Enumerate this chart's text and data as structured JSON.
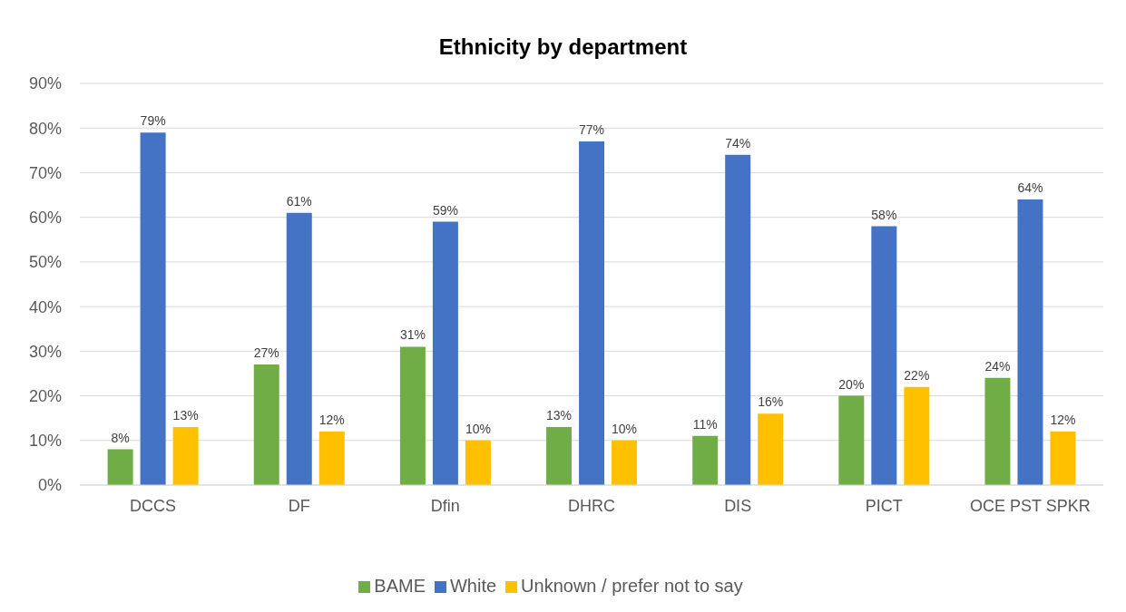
{
  "chart_data": {
    "type": "bar",
    "title": "Ethnicity by department",
    "categories": [
      "DCCS",
      "DF",
      "Dfin",
      "DHRC",
      "DIS",
      "PICT",
      "OCE PST SPKR"
    ],
    "series": [
      {
        "name": "BAME",
        "color": "#70ad47",
        "values": [
          8,
          27,
          31,
          13,
          11,
          20,
          24
        ],
        "value_labels": [
          "8%",
          "27%",
          "31%",
          "13%",
          "11%",
          "20%",
          "24%"
        ]
      },
      {
        "name": "White",
        "color": "#4472c4",
        "values": [
          79,
          61,
          59,
          77,
          74,
          58,
          64
        ],
        "value_labels": [
          "79%",
          "61%",
          "59%",
          "77%",
          "74%",
          "58%",
          "64%"
        ]
      },
      {
        "name": "Unknown / prefer not to say",
        "color": "#ffc000",
        "values": [
          13,
          12,
          10,
          10,
          16,
          22,
          12
        ],
        "value_labels": [
          "13%",
          "12%",
          "10%",
          "10%",
          "16%",
          "22%",
          "12%"
        ]
      }
    ],
    "ylim": [
      0,
      90
    ],
    "yticks": [
      {
        "value": 0,
        "label": "0%"
      },
      {
        "value": 10,
        "label": "10%"
      },
      {
        "value": 20,
        "label": "20%"
      },
      {
        "value": 30,
        "label": "30%"
      },
      {
        "value": 40,
        "label": "40%"
      },
      {
        "value": 50,
        "label": "50%"
      },
      {
        "value": 60,
        "label": "60%"
      },
      {
        "value": 70,
        "label": "70%"
      },
      {
        "value": 80,
        "label": "80%"
      },
      {
        "value": 90,
        "label": "90%"
      }
    ],
    "grid": "y",
    "legend": "bottom"
  }
}
